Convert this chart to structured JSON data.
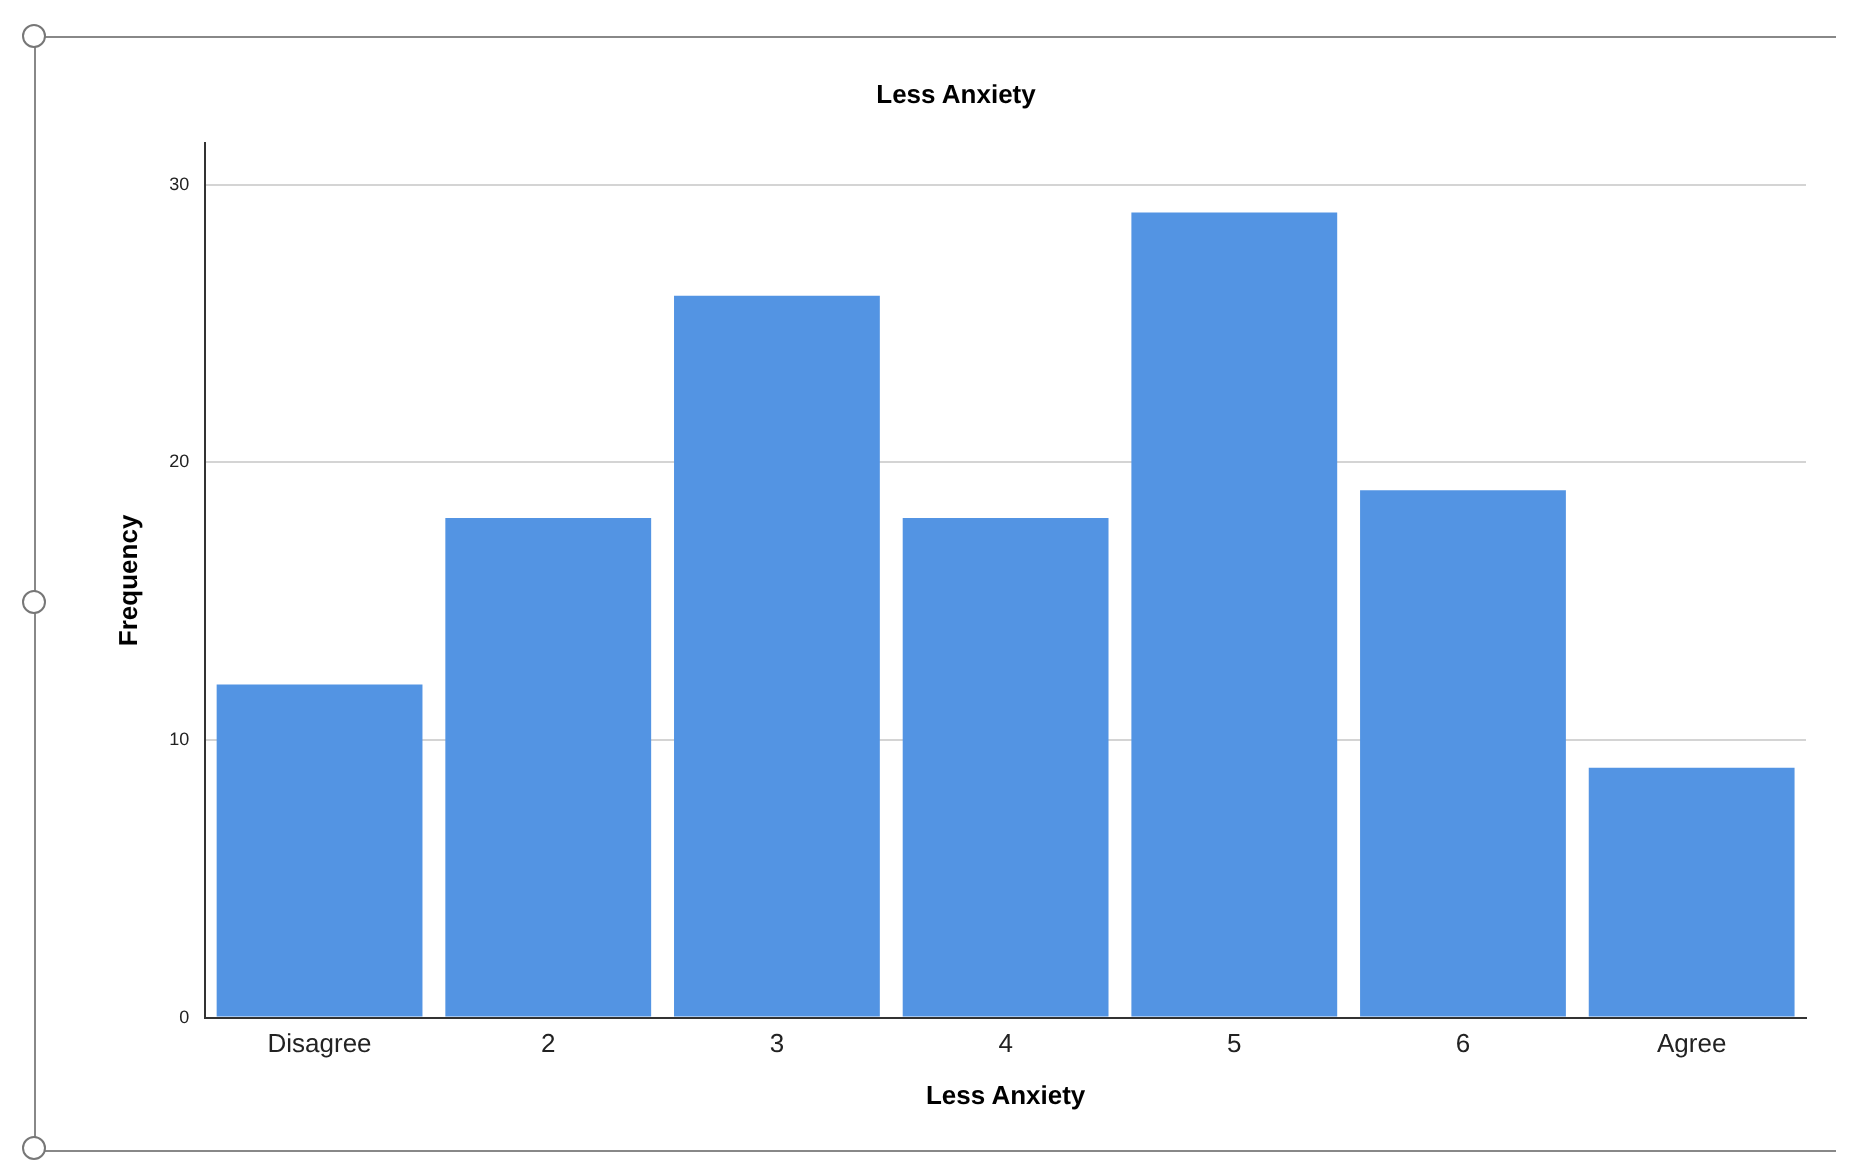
{
  "chart_data": {
    "type": "bar",
    "title": "Less Anxiety",
    "xlabel": "Less Anxiety",
    "ylabel": "Frequency",
    "categories": [
      "Disagree",
      "2",
      "3",
      "4",
      "5",
      "6",
      "Agree"
    ],
    "values": [
      12,
      18,
      26,
      18,
      29,
      19,
      9
    ],
    "color": "#5394e3",
    "ylim": [
      0,
      31.5
    ],
    "yticks": [
      0,
      10,
      20,
      30
    ],
    "grid": "y"
  }
}
